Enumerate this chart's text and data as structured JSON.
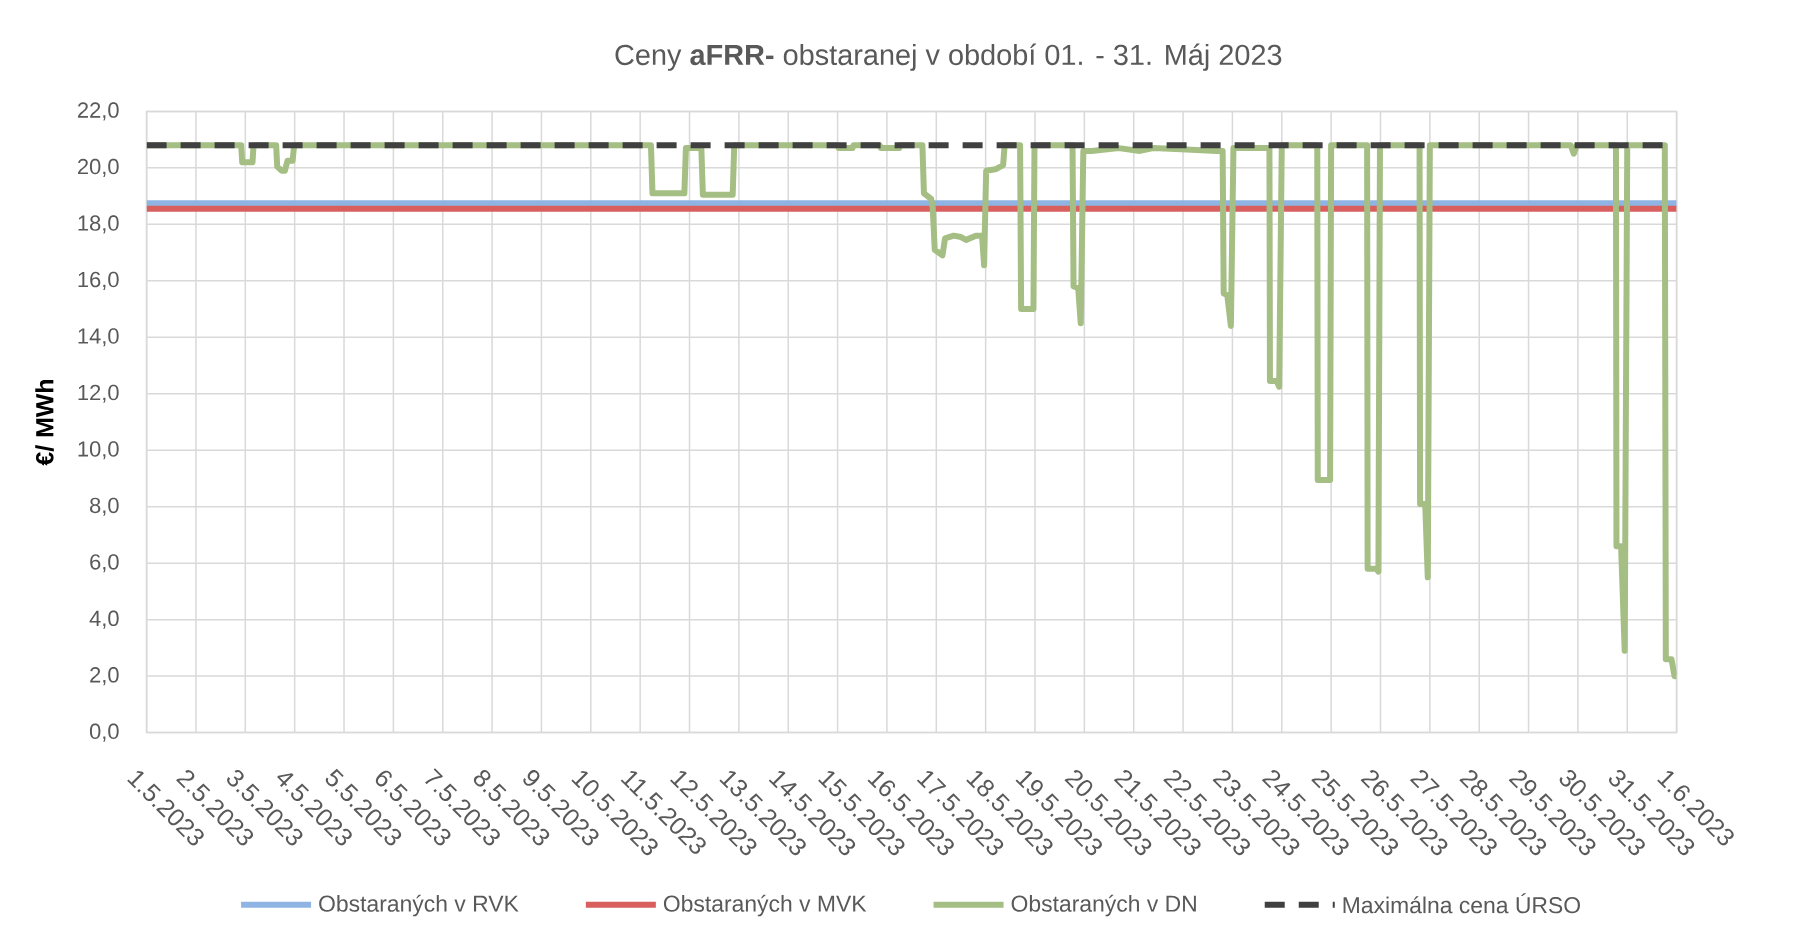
{
  "chart_data": {
    "type": "line",
    "title": "Ceny **aFRR-** obstaranej v období 01. - 31. Máj 2023",
    "ylabel": "€/ MWh",
    "xlim": [
      "2023-05-01",
      "2023-06-01"
    ],
    "xticks": [
      {
        "value": "2023-05-01",
        "label": "1.5.2023"
      },
      {
        "value": "2023-05-02",
        "label": "2.5.2023"
      },
      {
        "value": "2023-05-03",
        "label": "3.5.2023"
      },
      {
        "value": "2023-05-04",
        "label": "4.5.2023"
      },
      {
        "value": "2023-05-05",
        "label": "5.5.2023"
      },
      {
        "value": "2023-05-06",
        "label": "6.5.2023"
      },
      {
        "value": "2023-05-07",
        "label": "7.5.2023"
      },
      {
        "value": "2023-05-08",
        "label": "8.5.2023"
      },
      {
        "value": "2023-05-09",
        "label": "9.5.2023"
      },
      {
        "value": "2023-05-10",
        "label": "10.5.2023"
      },
      {
        "value": "2023-05-11",
        "label": "11.5.2023"
      },
      {
        "value": "2023-05-12",
        "label": "12.5.2023"
      },
      {
        "value": "2023-05-13",
        "label": "13.5.2023"
      },
      {
        "value": "2023-05-14",
        "label": "14.5.2023"
      },
      {
        "value": "2023-05-15",
        "label": "15.5.2023"
      },
      {
        "value": "2023-05-16",
        "label": "16.5.2023"
      },
      {
        "value": "2023-05-17",
        "label": "17.5.2023"
      },
      {
        "value": "2023-05-18",
        "label": "18.5.2023"
      },
      {
        "value": "2023-05-19",
        "label": "19.5.2023"
      },
      {
        "value": "2023-05-20",
        "label": "20.5.2023"
      },
      {
        "value": "2023-05-21",
        "label": "21.5.2023"
      },
      {
        "value": "2023-05-22",
        "label": "22.5.2023"
      },
      {
        "value": "2023-05-23",
        "label": "23.5.2023"
      },
      {
        "value": "2023-05-24",
        "label": "24.5.2023"
      },
      {
        "value": "2023-05-25",
        "label": "25.5.2023"
      },
      {
        "value": "2023-05-26",
        "label": "26.5.2023"
      },
      {
        "value": "2023-05-27",
        "label": "27.5.2023"
      },
      {
        "value": "2023-05-28",
        "label": "28.5.2023"
      },
      {
        "value": "2023-05-29",
        "label": "29.5.2023"
      },
      {
        "value": "2023-05-30",
        "label": "30.5.2023"
      },
      {
        "value": "2023-05-31",
        "label": "31.5.2023"
      },
      {
        "value": "2023-06-01",
        "label": "1.6.2023"
      }
    ],
    "ylim": [
      0,
      22
    ],
    "yticks": [
      {
        "value": 0,
        "label": "0,0"
      },
      {
        "value": 2,
        "label": "2,0"
      },
      {
        "value": 4,
        "label": "4,0"
      },
      {
        "value": 6,
        "label": "6,0"
      },
      {
        "value": 8,
        "label": "8,0"
      },
      {
        "value": 10,
        "label": "10,0"
      },
      {
        "value": 12,
        "label": "12,0"
      },
      {
        "value": 14,
        "label": "14,0"
      },
      {
        "value": 16,
        "label": "16,0"
      },
      {
        "value": 18,
        "label": "18,0"
      },
      {
        "value": 20,
        "label": "20,0"
      },
      {
        "value": 22,
        "label": "22,0"
      }
    ],
    "grid": true,
    "legend": "bottom",
    "series": [
      {
        "name": "Obstaraných v RVK",
        "color": "#8fb4e3",
        "x": [
          "2023-05-01T00:00",
          "2023-06-01T00:00"
        ],
        "values": [
          18.75,
          18.75
        ]
      },
      {
        "name": "Obstaraných v MVK",
        "color": "#d95f5f",
        "x": [
          "2023-05-01T00:00",
          "2023-06-01T00:00"
        ],
        "values": [
          18.55,
          18.55
        ]
      },
      {
        "name": "Obstaraných v DN",
        "color": "#a5be84",
        "x": [
          "2023-05-01T00:00",
          "2023-05-02T22:00",
          "2023-05-02T22:30",
          "2023-05-03T03:30",
          "2023-05-03T04:00",
          "2023-05-03T15:00",
          "2023-05-03T15:30",
          "2023-05-03T17:45",
          "2023-05-03T19:15",
          "2023-05-03T20:30",
          "2023-05-03T23:00",
          "2023-05-03T23:45",
          "2023-05-11T05:15",
          "2023-05-11T06:00",
          "2023-05-11T21:30",
          "2023-05-11T22:15",
          "2023-05-12T05:45",
          "2023-05-12T06:30",
          "2023-05-12T21:00",
          "2023-05-12T21:45",
          "2023-05-15T00:00",
          "2023-05-15T00:30",
          "2023-05-15T07:15",
          "2023-05-15T07:45",
          "2023-05-15T20:30",
          "2023-05-15T21:00",
          "2023-05-16T06:00",
          "2023-05-16T06:30",
          "2023-05-16T17:15",
          "2023-05-16T18:00",
          "2023-05-16T21:30",
          "2023-05-16T22:15",
          "2023-05-16T23:15",
          "2023-05-17T03:00",
          "2023-05-17T04:15",
          "2023-05-17T08:30",
          "2023-05-17T12:00",
          "2023-05-17T14:30",
          "2023-05-17T19:15",
          "2023-05-17T22:15",
          "2023-05-17T23:15",
          "2023-05-18T00:15",
          "2023-05-18T04:45",
          "2023-05-18T08:30",
          "2023-05-18T09:15",
          "2023-05-18T16:45",
          "2023-05-18T17:15",
          "2023-05-18T23:15",
          "2023-05-18T23:45",
          "2023-05-19T18:15",
          "2023-05-19T18:45",
          "2023-05-19T21:00",
          "2023-05-19T22:15",
          "2023-05-19T23:30",
          "2023-05-20T03:30",
          "2023-05-20T16:45",
          "2023-05-21T03:00",
          "2023-05-21T09:30",
          "2023-05-22T01:45",
          "2023-05-22T16:15",
          "2023-05-22T19:15",
          "2023-05-22T19:45",
          "2023-05-22T21:30",
          "2023-05-22T23:15",
          "2023-05-23T00:30",
          "2023-05-23T18:00",
          "2023-05-23T18:15",
          "2023-05-23T21:30",
          "2023-05-23T22:45",
          "2023-05-24T00:00",
          "2023-05-24T17:15",
          "2023-05-24T17:30",
          "2023-05-24T23:30",
          "2023-05-25T00:00",
          "2023-05-25T17:30",
          "2023-05-25T17:45",
          "2023-05-25T22:00",
          "2023-05-25T23:00",
          "2023-05-25T23:45",
          "2023-05-26T19:00",
          "2023-05-26T19:15",
          "2023-05-26T21:45",
          "2023-05-26T23:00",
          "2023-05-27T00:00",
          "2023-05-29T20:30",
          "2023-05-29T22:00",
          "2023-05-29T23:30",
          "2023-05-30T18:30",
          "2023-05-30T18:45",
          "2023-05-30T21:00",
          "2023-05-30T22:45",
          "2023-05-31T00:00",
          "2023-05-31T18:15",
          "2023-05-31T18:45",
          "2023-05-31T21:30",
          "2023-05-31T23:00",
          "2023-06-01T00:00"
        ],
        "values": [
          20.8,
          20.8,
          20.2,
          20.2,
          20.8,
          20.8,
          20.05,
          19.9,
          19.9,
          20.25,
          20.25,
          20.8,
          20.8,
          19.1,
          19.1,
          20.7,
          20.7,
          19.05,
          19.05,
          20.8,
          20.8,
          20.7,
          20.7,
          20.8,
          20.8,
          20.7,
          20.7,
          20.8,
          20.8,
          19.1,
          18.9,
          18.6,
          17.1,
          16.9,
          17.5,
          17.6,
          17.55,
          17.45,
          17.6,
          17.6,
          16.55,
          19.9,
          19.95,
          20.1,
          20.8,
          20.8,
          15.0,
          15.0,
          20.8,
          20.8,
          15.8,
          15.75,
          14.5,
          20.6,
          20.6,
          20.7,
          20.6,
          20.7,
          20.65,
          20.6,
          20.6,
          15.55,
          15.5,
          14.4,
          20.7,
          20.7,
          12.45,
          12.45,
          12.25,
          20.8,
          20.8,
          8.95,
          8.95,
          20.8,
          20.8,
          5.8,
          5.8,
          5.7,
          20.8,
          20.8,
          8.1,
          8.1,
          5.5,
          20.8,
          20.8,
          20.5,
          20.8,
          20.8,
          6.6,
          6.6,
          2.9,
          20.8,
          20.8,
          2.6,
          2.6,
          2.0,
          2.0
        ]
      },
      {
        "name": "Maximálna cena ÚRSO",
        "color": "#404040",
        "line_style": "dashed",
        "x": [
          "2023-05-01T00:00",
          "2023-06-01T00:00"
        ],
        "values": [
          20.8,
          20.8
        ]
      }
    ]
  }
}
